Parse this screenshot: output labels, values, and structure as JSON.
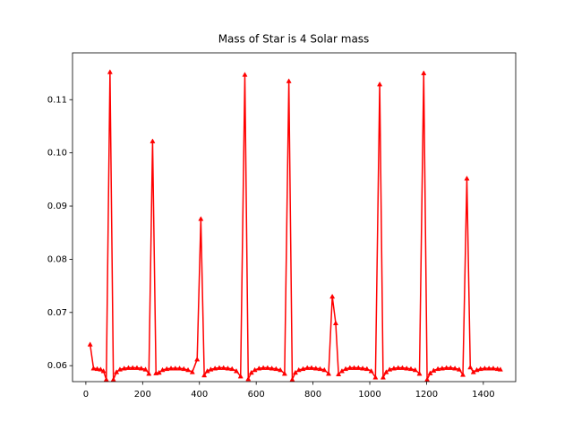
{
  "chart_data": {
    "type": "line",
    "title": "Mass of Star is 4 Solar mass",
    "color": "#ff0000",
    "marker": "^",
    "x": [
      15,
      27,
      40,
      52,
      62,
      72,
      85,
      97,
      108,
      120,
      135,
      150,
      165,
      180,
      195,
      210,
      222,
      235,
      247,
      258,
      270,
      285,
      300,
      315,
      330,
      345,
      360,
      375,
      392,
      405,
      417,
      428,
      440,
      455,
      470,
      485,
      500,
      515,
      530,
      545,
      560,
      572,
      583,
      595,
      610,
      625,
      640,
      655,
      670,
      685,
      700,
      715,
      727,
      738,
      750,
      765,
      780,
      795,
      810,
      825,
      840,
      855,
      868,
      880,
      890,
      902,
      915,
      930,
      945,
      960,
      975,
      990,
      1005,
      1020,
      1035,
      1047,
      1058,
      1070,
      1085,
      1100,
      1115,
      1130,
      1145,
      1160,
      1175,
      1190,
      1202,
      1213,
      1225,
      1240,
      1255,
      1270,
      1285,
      1300,
      1315,
      1328,
      1342,
      1354,
      1365,
      1377,
      1390,
      1405,
      1420,
      1435,
      1450,
      1460
    ],
    "values": [
      0.064,
      0.0595,
      0.0594,
      0.0593,
      0.059,
      0.0574,
      0.1152,
      0.0574,
      0.0588,
      0.0593,
      0.0595,
      0.0596,
      0.0596,
      0.0596,
      0.0595,
      0.0593,
      0.0585,
      0.1022,
      0.0586,
      0.0587,
      0.0592,
      0.0594,
      0.0595,
      0.0595,
      0.0595,
      0.0594,
      0.0592,
      0.0588,
      0.0612,
      0.0876,
      0.0582,
      0.059,
      0.0593,
      0.0595,
      0.0596,
      0.0596,
      0.0595,
      0.0594,
      0.059,
      0.058,
      0.1147,
      0.0575,
      0.0587,
      0.0592,
      0.0595,
      0.0596,
      0.0596,
      0.0595,
      0.0594,
      0.0592,
      0.0585,
      0.1135,
      0.0574,
      0.0587,
      0.0592,
      0.0594,
      0.0596,
      0.0596,
      0.0595,
      0.0594,
      0.0592,
      0.0585,
      0.073,
      0.068,
      0.0584,
      0.059,
      0.0594,
      0.0596,
      0.0596,
      0.0596,
      0.0595,
      0.0594,
      0.059,
      0.0578,
      0.1129,
      0.0578,
      0.0588,
      0.0593,
      0.0595,
      0.0596,
      0.0596,
      0.0595,
      0.0594,
      0.0592,
      0.0585,
      0.115,
      0.0574,
      0.0586,
      0.0591,
      0.0594,
      0.0595,
      0.0596,
      0.0596,
      0.0595,
      0.0593,
      0.0583,
      0.0952,
      0.0597,
      0.0588,
      0.0592,
      0.0594,
      0.0595,
      0.0595,
      0.0595,
      0.0594,
      0.0593
    ],
    "xlim": [
      -47,
      1514
    ],
    "ylim": [
      0.057,
      0.1188
    ],
    "xticks": [
      0,
      200,
      400,
      600,
      800,
      1000,
      1200,
      1400
    ],
    "yticks": [
      0.06,
      0.07,
      0.08,
      0.09,
      {
        "value": 0.1,
        "label": "0.10"
      },
      0.11
    ]
  }
}
